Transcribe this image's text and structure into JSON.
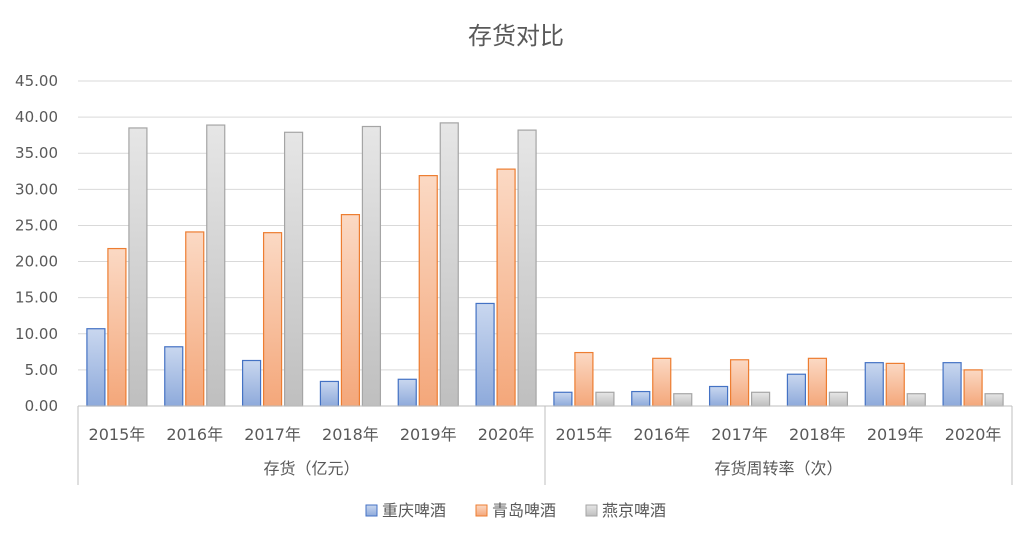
{
  "chart_data": {
    "type": "bar",
    "title": "存货对比",
    "xlabel": "",
    "ylabel": "",
    "ylim": [
      0,
      45
    ],
    "y_ticks": [
      "0.00",
      "5.00",
      "10.00",
      "15.00",
      "20.00",
      "25.00",
      "30.00",
      "35.00",
      "40.00",
      "45.00"
    ],
    "grid": true,
    "legend_position": "bottom",
    "groups": [
      {
        "label": "存货（亿元）",
        "categories": [
          "2015年",
          "2016年",
          "2017年",
          "2018年",
          "2019年",
          "2020年"
        ],
        "series": [
          {
            "name": "重庆啤酒",
            "values": [
              10.7,
              8.2,
              6.3,
              3.4,
              3.7,
              14.2
            ]
          },
          {
            "name": "青岛啤酒",
            "values": [
              21.8,
              24.1,
              24.0,
              26.5,
              31.9,
              32.8
            ]
          },
          {
            "name": "燕京啤酒",
            "values": [
              38.5,
              38.9,
              37.9,
              38.7,
              39.2,
              38.2
            ]
          }
        ]
      },
      {
        "label": "存货周转率（次）",
        "categories": [
          "2015年",
          "2016年",
          "2017年",
          "2018年",
          "2019年",
          "2020年"
        ],
        "series": [
          {
            "name": "重庆啤酒",
            "values": [
              1.9,
              2.0,
              2.7,
              4.4,
              6.0,
              6.0
            ]
          },
          {
            "name": "青岛啤酒",
            "values": [
              7.4,
              6.6,
              6.4,
              6.6,
              5.9,
              5.0
            ]
          },
          {
            "name": "燕京啤酒",
            "values": [
              1.9,
              1.7,
              1.9,
              1.9,
              1.7,
              1.7
            ]
          }
        ]
      }
    ],
    "legend": [
      "重庆啤酒",
      "青岛啤酒",
      "燕京啤酒"
    ],
    "colors": {
      "series_fill": [
        "#b4c7e7",
        "#f8cbad",
        "#d9d9d9"
      ],
      "series_stroke": [
        "#4472c4",
        "#ed7d31",
        "#a5a5a5"
      ],
      "grid": "#d9d9d9",
      "axis": "#bfbfbf",
      "text": "#595959"
    }
  }
}
